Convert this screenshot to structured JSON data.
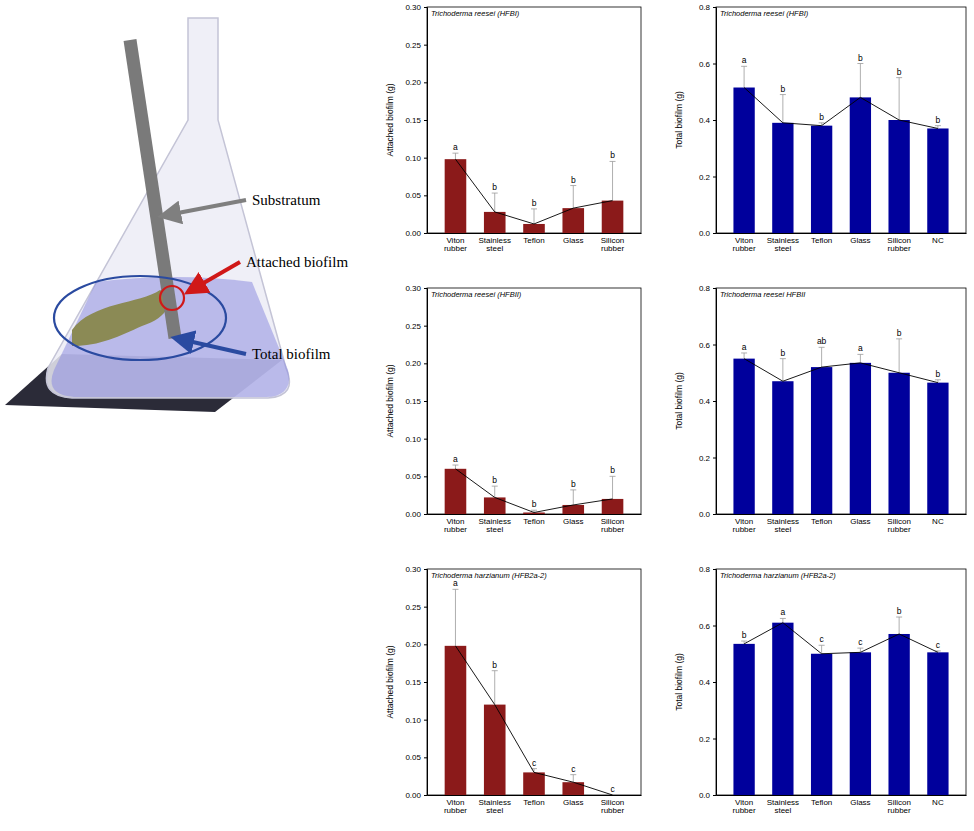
{
  "chart_data": [
    {
      "type": "bar",
      "title": "Trichoderma reesei (HFBI)",
      "ylabel": "Attached biofilm (g)",
      "categories": [
        "Viton rubber",
        "Stainless steel",
        "Teflon",
        "Glass",
        "Silicon rubber"
      ],
      "values": [
        0.098,
        0.028,
        0.012,
        0.033,
        0.043
      ],
      "errors": [
        0.008,
        0.025,
        0.02,
        0.03,
        0.052
      ],
      "letters": [
        "a",
        "b",
        "b",
        "b",
        "b"
      ],
      "color": "#8b1a1a",
      "ylim": [
        0,
        0.3
      ],
      "yticks": [
        {
          "value": 0,
          "label": "0.00"
        },
        {
          "value": 0.05,
          "label": "0.05"
        },
        {
          "value": 0.1,
          "label": "0.10"
        },
        {
          "value": 0.15,
          "label": "0.15"
        },
        {
          "value": 0.2,
          "label": "0.20"
        },
        {
          "value": 0.25,
          "label": "0.25"
        },
        {
          "value": 0.3,
          "label": "0.30"
        }
      ]
    },
    {
      "type": "bar",
      "title": "Trichoderma reesei (HFBI)",
      "ylabel": "Total biofilm (g)",
      "categories": [
        "Viton rubber",
        "Stainless steel",
        "Teflon",
        "Glass",
        "Silicon rubber",
        "NC"
      ],
      "values": [
        0.515,
        0.39,
        0.38,
        0.48,
        0.4,
        0.37
      ],
      "errors": [
        0.075,
        0.1,
        0.01,
        0.12,
        0.15,
        0.01
      ],
      "letters": [
        "a",
        "b",
        "b",
        "b",
        "b",
        "b"
      ],
      "color": "#00009c",
      "ylim": [
        0,
        0.8
      ],
      "yticks": [
        {
          "value": 0,
          "label": "0.0"
        },
        {
          "value": 0.2,
          "label": "0.2"
        },
        {
          "value": 0.4,
          "label": "0.4"
        },
        {
          "value": 0.6,
          "label": "0.6"
        },
        {
          "value": 0.8,
          "label": "0.8"
        }
      ]
    },
    {
      "type": "bar",
      "title": "Trichoderma reesei (HFBII)",
      "ylabel": "Attached biofilm (g)",
      "categories": [
        "Viton rubber",
        "Stainless steel",
        "Teflon",
        "Glass",
        "Silicon rubber"
      ],
      "values": [
        0.06,
        0.022,
        0.002,
        0.012,
        0.02
      ],
      "errors": [
        0.005,
        0.015,
        0.003,
        0.02,
        0.03
      ],
      "letters": [
        "a",
        "b",
        "b",
        "b",
        "b"
      ],
      "color": "#8b1a1a",
      "ylim": [
        0,
        0.3
      ],
      "yticks": [
        {
          "value": 0,
          "label": "0.00"
        },
        {
          "value": 0.05,
          "label": "0.05"
        },
        {
          "value": 0.1,
          "label": "0.10"
        },
        {
          "value": 0.15,
          "label": "0.15"
        },
        {
          "value": 0.2,
          "label": "0.20"
        },
        {
          "value": 0.25,
          "label": "0.25"
        },
        {
          "value": 0.3,
          "label": "0.30"
        }
      ]
    },
    {
      "type": "bar",
      "title": "Trichoderma reesei HFBII",
      "ylabel": "Total biofilm (g)",
      "categories": [
        "Viton rubber",
        "Stainless steel",
        "Teflon",
        "Glass",
        "Silicon rubber",
        "NC"
      ],
      "values": [
        0.55,
        0.47,
        0.52,
        0.535,
        0.5,
        0.465
      ],
      "errors": [
        0.02,
        0.08,
        0.07,
        0.03,
        0.12,
        0.01
      ],
      "letters": [
        "a",
        "b",
        "ab",
        "a",
        "b",
        "b"
      ],
      "color": "#00009c",
      "ylim": [
        0,
        0.8
      ],
      "yticks": [
        {
          "value": 0,
          "label": "0.0"
        },
        {
          "value": 0.2,
          "label": "0.2"
        },
        {
          "value": 0.4,
          "label": "0.4"
        },
        {
          "value": 0.6,
          "label": "0.6"
        },
        {
          "value": 0.8,
          "label": "0.8"
        }
      ]
    },
    {
      "type": "bar",
      "title": "Trichoderma harzianum (HFB2a-2)",
      "ylabel": "Attached biofilm (g)",
      "categories": [
        "Viton rubber",
        "Stainless steel",
        "Teflon",
        "Glass",
        "Silicon rubber"
      ],
      "values": [
        0.198,
        0.12,
        0.03,
        0.017,
        0
      ],
      "errors": [
        0.075,
        0.045,
        0.005,
        0.01,
        0
      ],
      "letters": [
        "a",
        "b",
        "c",
        "c",
        "c"
      ],
      "color": "#8b1a1a",
      "ylim": [
        0,
        0.3
      ],
      "yticks": [
        {
          "value": 0,
          "label": "0.00"
        },
        {
          "value": 0.05,
          "label": "0.05"
        },
        {
          "value": 0.1,
          "label": "0.10"
        },
        {
          "value": 0.15,
          "label": "0.15"
        },
        {
          "value": 0.2,
          "label": "0.20"
        },
        {
          "value": 0.25,
          "label": "0.25"
        },
        {
          "value": 0.3,
          "label": "0.30"
        }
      ]
    },
    {
      "type": "bar",
      "title": "Trichoderma harzianum (HFB2a-2)",
      "ylabel": "Total biofilm (g)",
      "categories": [
        "Viton rubber",
        "Stainless steel",
        "Teflon",
        "Glass",
        "Silicon rubber",
        "NC"
      ],
      "values": [
        0.535,
        0.61,
        0.5,
        0.505,
        0.57,
        0.505
      ],
      "errors": [
        0.01,
        0.015,
        0.03,
        0.015,
        0.06,
        0.005
      ],
      "letters": [
        "b",
        "a",
        "c",
        "c",
        "b",
        "c"
      ],
      "color": "#00009c",
      "ylim": [
        0,
        0.8
      ],
      "yticks": [
        {
          "value": 0,
          "label": "0.0"
        },
        {
          "value": 0.2,
          "label": "0.2"
        },
        {
          "value": 0.4,
          "label": "0.4"
        },
        {
          "value": 0.6,
          "label": "0.6"
        },
        {
          "value": 0.8,
          "label": "0.8"
        }
      ]
    }
  ],
  "diagram": {
    "labels": [
      "Substratum",
      "Attached biofilm",
      "Total biofilm"
    ]
  }
}
